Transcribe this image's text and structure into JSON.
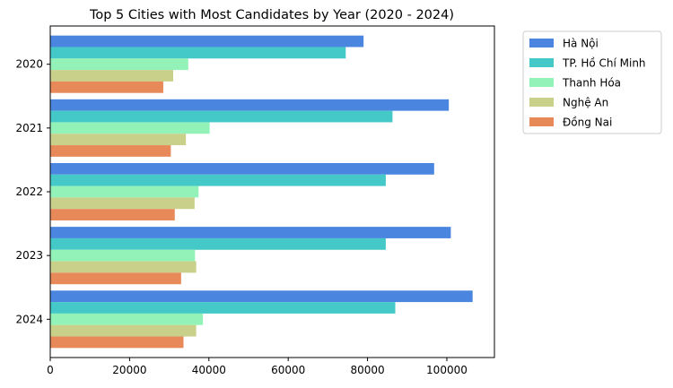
{
  "chart_data": {
    "type": "bar",
    "orientation": "horizontal",
    "title": "Top 5 Cities with Most Candidates by Year (2020 - 2024)",
    "xlabel": "",
    "ylabel": "",
    "categories": [
      "2020",
      "2021",
      "2022",
      "2023",
      "2024"
    ],
    "series": [
      {
        "name": "Hà Nội",
        "color": "#4a86e0",
        "values": [
          79000,
          100500,
          96800,
          101000,
          106500
        ]
      },
      {
        "name": "TP. Hồ Chí Minh",
        "color": "#45c8c8",
        "values": [
          74500,
          86300,
          84600,
          84600,
          87000
        ]
      },
      {
        "name": "Thanh Hóa",
        "color": "#93f2b8",
        "values": [
          34800,
          40200,
          37400,
          36500,
          38500
        ]
      },
      {
        "name": "Nghệ An",
        "color": "#c9d08a",
        "values": [
          31000,
          34200,
          36400,
          36800,
          36800
        ]
      },
      {
        "name": "Đồng Nai",
        "color": "#e8895a",
        "values": [
          28500,
          30400,
          31400,
          33000,
          33600
        ]
      }
    ],
    "xlim": [
      0,
      112000
    ],
    "xticks": [
      "0",
      "20000",
      "40000",
      "60000",
      "80000",
      "100000"
    ],
    "xtick_values": [
      0,
      20000,
      40000,
      60000,
      80000,
      100000
    ],
    "legend_position": "outside-right",
    "grid": false
  }
}
